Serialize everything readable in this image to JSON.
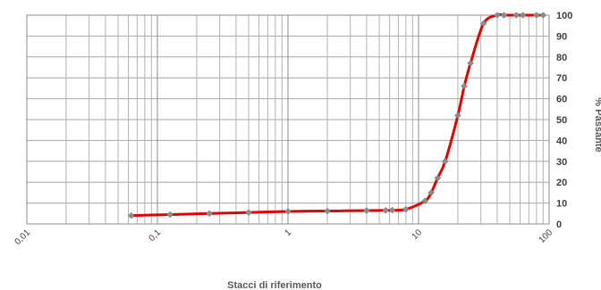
{
  "chart_data": {
    "type": "scatter",
    "title": "",
    "xlabel": "Stacci di riferimento",
    "ylabel": "% Passante",
    "x_scale": "log",
    "xlim": [
      0.01,
      100
    ],
    "ylim": [
      0,
      100
    ],
    "x_tick_labels": [
      "0,01",
      "0,1",
      "1",
      "10",
      "100"
    ],
    "y_tick_labels": [
      "0",
      "10",
      "20",
      "30",
      "40",
      "50",
      "60",
      "70",
      "80",
      "90",
      "100"
    ],
    "grid": true,
    "y_axis_position": "right",
    "legend": "none",
    "series": [
      {
        "color": "#e00000",
        "marker_color": "#8c8c8c",
        "points": [
          {
            "x": 0.063,
            "y": 4
          },
          {
            "x": 0.125,
            "y": 4.5
          },
          {
            "x": 0.25,
            "y": 5
          },
          {
            "x": 0.5,
            "y": 5.5
          },
          {
            "x": 1,
            "y": 6
          },
          {
            "x": 2,
            "y": 6.2
          },
          {
            "x": 4,
            "y": 6.4
          },
          {
            "x": 5.6,
            "y": 6.5
          },
          {
            "x": 6.3,
            "y": 6.6
          },
          {
            "x": 8,
            "y": 7
          },
          {
            "x": 11.2,
            "y": 11
          },
          {
            "x": 12.5,
            "y": 15
          },
          {
            "x": 14,
            "y": 22
          },
          {
            "x": 16,
            "y": 30
          },
          {
            "x": 20,
            "y": 52
          },
          {
            "x": 22.4,
            "y": 66
          },
          {
            "x": 25,
            "y": 77
          },
          {
            "x": 31.5,
            "y": 96
          },
          {
            "x": 40,
            "y": 100
          },
          {
            "x": 45,
            "y": 100
          },
          {
            "x": 56,
            "y": 100
          },
          {
            "x": 63,
            "y": 100
          },
          {
            "x": 80,
            "y": 100
          },
          {
            "x": 90,
            "y": 100
          }
        ]
      }
    ]
  }
}
